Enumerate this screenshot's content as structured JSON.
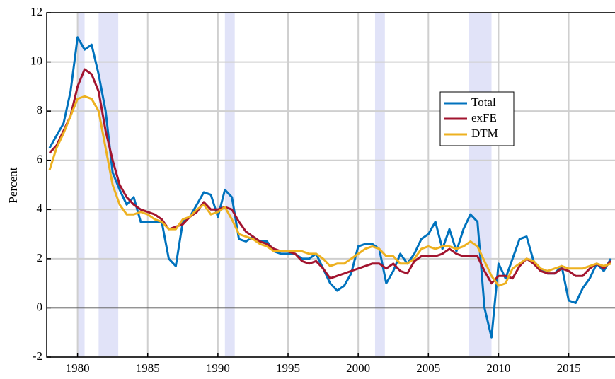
{
  "chart_data": {
    "type": "line",
    "y_label": "Percent",
    "x": [
      1978.0,
      1978.5,
      1979.0,
      1979.5,
      1980.0,
      1980.5,
      1981.0,
      1981.5,
      1982.0,
      1982.5,
      1983.0,
      1983.5,
      1984.0,
      1984.5,
      1985.0,
      1985.5,
      1986.0,
      1986.5,
      1987.0,
      1987.5,
      1988.0,
      1988.5,
      1989.0,
      1989.5,
      1990.0,
      1990.5,
      1991.0,
      1991.5,
      1992.0,
      1992.5,
      1993.0,
      1993.5,
      1994.0,
      1994.5,
      1995.0,
      1995.5,
      1996.0,
      1996.5,
      1997.0,
      1997.5,
      1998.0,
      1998.5,
      1999.0,
      1999.5,
      2000.0,
      2000.5,
      2001.0,
      2001.5,
      2002.0,
      2002.5,
      2003.0,
      2003.5,
      2004.0,
      2004.5,
      2005.0,
      2005.5,
      2006.0,
      2006.5,
      2007.0,
      2007.5,
      2008.0,
      2008.5,
      2009.0,
      2009.5,
      2010.0,
      2010.5,
      2011.0,
      2011.5,
      2012.0,
      2012.5,
      2013.0,
      2013.5,
      2014.0,
      2014.5,
      2015.0,
      2015.5,
      2016.0,
      2016.5,
      2017.0,
      2017.5,
      2018.0
    ],
    "series": [
      {
        "name": "Total",
        "color": "#0072bd",
        "values": [
          6.5,
          7.0,
          7.5,
          8.8,
          11.0,
          10.5,
          10.7,
          9.5,
          8.0,
          5.5,
          4.8,
          4.2,
          4.5,
          3.5,
          3.5,
          3.5,
          3.5,
          2.0,
          1.7,
          3.5,
          3.7,
          4.2,
          4.7,
          4.6,
          3.7,
          4.8,
          4.5,
          2.8,
          2.7,
          2.9,
          2.7,
          2.7,
          2.3,
          2.2,
          2.2,
          2.2,
          2.0,
          2.0,
          2.2,
          1.6,
          1.0,
          0.7,
          0.9,
          1.4,
          2.5,
          2.6,
          2.6,
          2.4,
          1.0,
          1.5,
          2.2,
          1.8,
          2.2,
          2.8,
          3.0,
          3.5,
          2.4,
          3.2,
          2.3,
          3.2,
          3.8,
          3.5,
          0.0,
          -1.2,
          1.8,
          1.2,
          2.0,
          2.8,
          2.9,
          1.9,
          1.6,
          1.4,
          1.4,
          1.7,
          0.3,
          0.2,
          0.8,
          1.2,
          1.8,
          1.5,
          2.0
        ]
      },
      {
        "name": "exFE",
        "color": "#a2142f",
        "values": [
          6.3,
          6.6,
          7.2,
          7.8,
          9.0,
          9.7,
          9.5,
          8.8,
          7.2,
          6.0,
          5.0,
          4.5,
          4.2,
          4.0,
          3.9,
          3.8,
          3.6,
          3.2,
          3.3,
          3.4,
          3.7,
          3.9,
          4.3,
          4.0,
          4.0,
          4.1,
          4.0,
          3.5,
          3.1,
          2.9,
          2.7,
          2.6,
          2.4,
          2.3,
          2.3,
          2.2,
          1.9,
          1.8,
          1.9,
          1.6,
          1.2,
          1.3,
          1.4,
          1.5,
          1.6,
          1.7,
          1.8,
          1.8,
          1.6,
          1.8,
          1.5,
          1.4,
          1.9,
          2.1,
          2.1,
          2.1,
          2.2,
          2.4,
          2.2,
          2.1,
          2.1,
          2.1,
          1.5,
          1.0,
          1.3,
          1.3,
          1.2,
          1.7,
          2.0,
          1.8,
          1.5,
          1.4,
          1.4,
          1.6,
          1.5,
          1.3,
          1.3,
          1.6,
          1.8,
          1.6,
          1.9
        ]
      },
      {
        "name": "DTM",
        "color": "#edb120",
        "values": [
          5.6,
          6.5,
          7.1,
          7.8,
          8.5,
          8.6,
          8.5,
          8.0,
          6.5,
          5.0,
          4.2,
          3.8,
          3.8,
          3.9,
          3.8,
          3.6,
          3.5,
          3.2,
          3.2,
          3.6,
          3.7,
          4.0,
          4.2,
          3.8,
          3.9,
          4.1,
          3.6,
          3.0,
          2.9,
          2.8,
          2.6,
          2.5,
          2.3,
          2.3,
          2.3,
          2.3,
          2.3,
          2.2,
          2.2,
          2.0,
          1.7,
          1.8,
          1.8,
          2.0,
          2.2,
          2.4,
          2.5,
          2.4,
          2.1,
          2.1,
          1.8,
          1.8,
          2.0,
          2.4,
          2.5,
          2.4,
          2.5,
          2.5,
          2.4,
          2.5,
          2.7,
          2.5,
          1.9,
          1.3,
          0.9,
          1.0,
          1.6,
          1.8,
          2.0,
          1.9,
          1.6,
          1.5,
          1.6,
          1.7,
          1.6,
          1.6,
          1.6,
          1.7,
          1.8,
          1.7,
          1.8
        ]
      }
    ],
    "shaded_periods": [
      [
        1980.0,
        1980.5
      ],
      [
        1981.5,
        1982.9
      ],
      [
        1990.5,
        1991.2
      ],
      [
        2001.2,
        2001.9
      ],
      [
        2007.9,
        2009.5
      ]
    ],
    "shade_color": "#e1e3f8",
    "hline": 0,
    "xlim": [
      1977.8,
      2018.3
    ],
    "ylim": [
      -2,
      12
    ],
    "xticks": [
      1980,
      1985,
      1990,
      1995,
      2000,
      2005,
      2010,
      2015
    ],
    "yticks": [
      -2,
      0,
      2,
      4,
      6,
      8,
      10,
      12
    ],
    "grid": true,
    "legend": "center right"
  }
}
